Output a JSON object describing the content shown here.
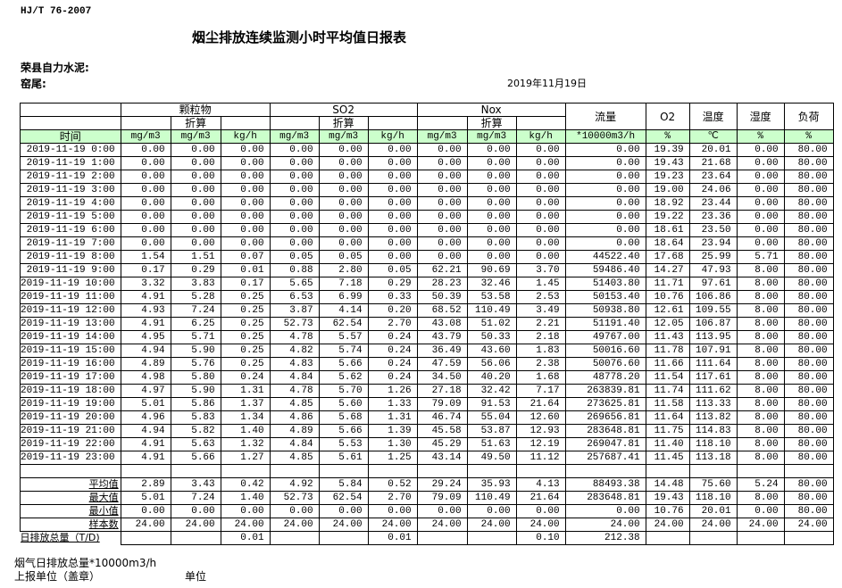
{
  "standard": "HJ/T  76-2007",
  "title": "烟尘排放连续监测小时平均值日报表",
  "company": "荣县自力水泥:",
  "kiln": "窑尾:",
  "date": "2019年11月19日",
  "header": {
    "particulate": "颗粒物",
    "so2": "SO2",
    "nox": "Nox",
    "converted": "折算",
    "flow": "流量",
    "o2": "O2",
    "temp": "温度",
    "humidity": "湿度",
    "load": "负荷",
    "time": "时间",
    "units": [
      "mg/m3",
      "mg/m3",
      "kg/h",
      "mg/m3",
      "mg/m3",
      "kg/h",
      "mg/m3",
      "mg/m3",
      "kg/h",
      "*10000m3/h",
      "%",
      "℃",
      "%",
      "%"
    ]
  },
  "rows": [
    [
      "2019-11-19 0:00",
      "0.00",
      "0.00",
      "0.00",
      "0.00",
      "0.00",
      "0.00",
      "0.00",
      "0.00",
      "0.00",
      "0.00",
      "19.39",
      "20.01",
      "0.00",
      "80.00"
    ],
    [
      "2019-11-19 1:00",
      "0.00",
      "0.00",
      "0.00",
      "0.00",
      "0.00",
      "0.00",
      "0.00",
      "0.00",
      "0.00",
      "0.00",
      "19.43",
      "21.68",
      "0.00",
      "80.00"
    ],
    [
      "2019-11-19 2:00",
      "0.00",
      "0.00",
      "0.00",
      "0.00",
      "0.00",
      "0.00",
      "0.00",
      "0.00",
      "0.00",
      "0.00",
      "19.23",
      "23.64",
      "0.00",
      "80.00"
    ],
    [
      "2019-11-19 3:00",
      "0.00",
      "0.00",
      "0.00",
      "0.00",
      "0.00",
      "0.00",
      "0.00",
      "0.00",
      "0.00",
      "0.00",
      "19.00",
      "24.06",
      "0.00",
      "80.00"
    ],
    [
      "2019-11-19 4:00",
      "0.00",
      "0.00",
      "0.00",
      "0.00",
      "0.00",
      "0.00",
      "0.00",
      "0.00",
      "0.00",
      "0.00",
      "18.92",
      "23.44",
      "0.00",
      "80.00"
    ],
    [
      "2019-11-19 5:00",
      "0.00",
      "0.00",
      "0.00",
      "0.00",
      "0.00",
      "0.00",
      "0.00",
      "0.00",
      "0.00",
      "0.00",
      "19.22",
      "23.36",
      "0.00",
      "80.00"
    ],
    [
      "2019-11-19 6:00",
      "0.00",
      "0.00",
      "0.00",
      "0.00",
      "0.00",
      "0.00",
      "0.00",
      "0.00",
      "0.00",
      "0.00",
      "18.61",
      "23.50",
      "0.00",
      "80.00"
    ],
    [
      "2019-11-19 7:00",
      "0.00",
      "0.00",
      "0.00",
      "0.00",
      "0.00",
      "0.00",
      "0.00",
      "0.00",
      "0.00",
      "0.00",
      "18.64",
      "23.94",
      "0.00",
      "80.00"
    ],
    [
      "2019-11-19 8:00",
      "1.54",
      "1.51",
      "0.07",
      "0.05",
      "0.05",
      "0.00",
      "0.00",
      "0.00",
      "0.00",
      "44522.40",
      "17.68",
      "25.99",
      "5.71",
      "80.00"
    ],
    [
      "2019-11-19 9:00",
      "0.17",
      "0.29",
      "0.01",
      "0.88",
      "2.80",
      "0.05",
      "62.21",
      "90.69",
      "3.70",
      "59486.40",
      "14.27",
      "47.93",
      "8.00",
      "80.00"
    ],
    [
      "2019-11-19 10:00",
      "3.32",
      "3.83",
      "0.17",
      "5.65",
      "7.18",
      "0.29",
      "28.23",
      "32.46",
      "1.45",
      "51403.80",
      "11.71",
      "97.61",
      "8.00",
      "80.00"
    ],
    [
      "2019-11-19 11:00",
      "4.91",
      "5.28",
      "0.25",
      "6.53",
      "6.99",
      "0.33",
      "50.39",
      "53.58",
      "2.53",
      "50153.40",
      "10.76",
      "106.86",
      "8.00",
      "80.00"
    ],
    [
      "2019-11-19 12:00",
      "4.93",
      "7.24",
      "0.25",
      "3.87",
      "4.14",
      "0.20",
      "68.52",
      "110.49",
      "3.49",
      "50938.80",
      "12.61",
      "109.55",
      "8.00",
      "80.00"
    ],
    [
      "2019-11-19 13:00",
      "4.91",
      "6.25",
      "0.25",
      "52.73",
      "62.54",
      "2.70",
      "43.08",
      "51.02",
      "2.21",
      "51191.40",
      "12.05",
      "106.87",
      "8.00",
      "80.00"
    ],
    [
      "2019-11-19 14:00",
      "4.95",
      "5.71",
      "0.25",
      "4.78",
      "5.57",
      "0.24",
      "43.79",
      "50.33",
      "2.18",
      "49767.00",
      "11.43",
      "113.95",
      "8.00",
      "80.00"
    ],
    [
      "2019-11-19 15:00",
      "4.94",
      "5.90",
      "0.25",
      "4.82",
      "5.74",
      "0.24",
      "36.49",
      "43.60",
      "1.83",
      "50016.60",
      "11.78",
      "107.91",
      "8.00",
      "80.00"
    ],
    [
      "2019-11-19 16:00",
      "4.89",
      "5.76",
      "0.25",
      "4.83",
      "5.66",
      "0.24",
      "47.59",
      "56.06",
      "2.38",
      "50076.60",
      "11.66",
      "111.64",
      "8.00",
      "80.00"
    ],
    [
      "2019-11-19 17:00",
      "4.98",
      "5.80",
      "0.24",
      "4.84",
      "5.62",
      "0.24",
      "34.50",
      "40.20",
      "1.68",
      "48778.20",
      "11.54",
      "117.61",
      "8.00",
      "80.00"
    ],
    [
      "2019-11-19 18:00",
      "4.97",
      "5.90",
      "1.31",
      "4.78",
      "5.70",
      "1.26",
      "27.18",
      "32.42",
      "7.17",
      "263839.81",
      "11.74",
      "111.62",
      "8.00",
      "80.00"
    ],
    [
      "2019-11-19 19:00",
      "5.01",
      "5.86",
      "1.37",
      "4.85",
      "5.60",
      "1.33",
      "79.09",
      "91.53",
      "21.64",
      "273625.81",
      "11.58",
      "113.33",
      "8.00",
      "80.00"
    ],
    [
      "2019-11-19 20:00",
      "4.96",
      "5.83",
      "1.34",
      "4.86",
      "5.68",
      "1.31",
      "46.74",
      "55.04",
      "12.60",
      "269656.81",
      "11.64",
      "113.82",
      "8.00",
      "80.00"
    ],
    [
      "2019-11-19 21:00",
      "4.94",
      "5.82",
      "1.40",
      "4.89",
      "5.66",
      "1.39",
      "45.58",
      "53.87",
      "12.93",
      "283648.81",
      "11.75",
      "114.83",
      "8.00",
      "80.00"
    ],
    [
      "2019-11-19 22:00",
      "4.91",
      "5.63",
      "1.32",
      "4.84",
      "5.53",
      "1.30",
      "45.29",
      "51.63",
      "12.19",
      "269047.81",
      "11.40",
      "118.10",
      "8.00",
      "80.00"
    ],
    [
      "2019-11-19 23:00",
      "4.91",
      "5.66",
      "1.27",
      "4.85",
      "5.61",
      "1.25",
      "43.14",
      "49.50",
      "11.12",
      "257687.41",
      "11.45",
      "113.18",
      "8.00",
      "80.00"
    ]
  ],
  "summary": [
    [
      "平均值",
      "2.89",
      "3.43",
      "0.42",
      "4.92",
      "5.84",
      "0.52",
      "29.24",
      "35.93",
      "4.13",
      "88493.38",
      "14.48",
      "75.60",
      "5.24",
      "80.00"
    ],
    [
      "最大值",
      "5.01",
      "7.24",
      "1.40",
      "52.73",
      "62.54",
      "2.70",
      "79.09",
      "110.49",
      "21.64",
      "283648.81",
      "19.43",
      "118.10",
      "8.00",
      "80.00"
    ],
    [
      "最小值",
      "0.00",
      "0.00",
      "0.00",
      "0.00",
      "0.00",
      "0.00",
      "0.00",
      "0.00",
      "0.00",
      "0.00",
      "10.76",
      "20.01",
      "0.00",
      "80.00"
    ],
    [
      "样本数",
      "24.00",
      "24.00",
      "24.00",
      "24.00",
      "24.00",
      "24.00",
      "24.00",
      "24.00",
      "24.00",
      "24.00",
      "24.00",
      "24.00",
      "24.00",
      "24.00"
    ]
  ],
  "daily_total": [
    "日排放总量（T/D)",
    "",
    "",
    "0.01",
    "",
    "",
    "0.01",
    "",
    "",
    "0.10",
    "212.38",
    "",
    "",
    "",
    ""
  ],
  "footer": {
    "flue_gas_total": "烟气日排放总量*10000m3/h",
    "reporting_unit": "上报单位（盖章）",
    "unit": "单位"
  },
  "colors": {
    "unit_row_bg": "#ccffcc"
  }
}
